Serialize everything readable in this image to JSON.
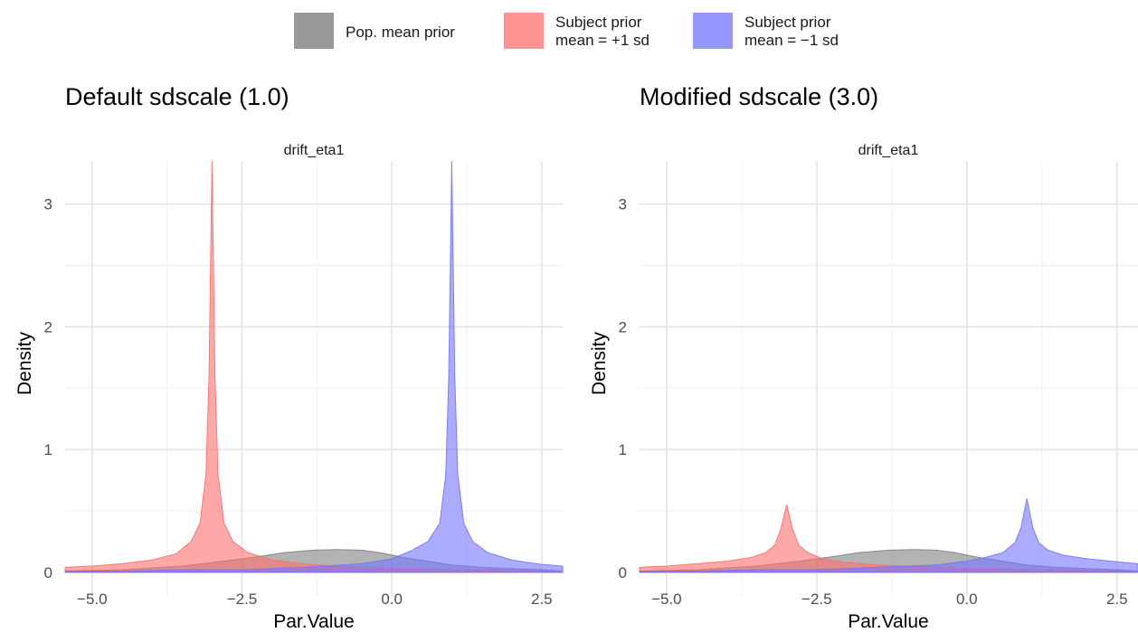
{
  "legend": {
    "items": [
      {
        "lines": [
          "Pop. mean prior"
        ],
        "color": "#808080"
      },
      {
        "lines": [
          "Subject prior",
          "mean = +1 sd"
        ],
        "color": "#FF6E6E"
      },
      {
        "lines": [
          "Subject prior",
          "mean = −1 sd"
        ],
        "color": "#7373FF"
      }
    ]
  },
  "chart_data": [
    {
      "type": "area",
      "title": "Default sdscale (1.0)",
      "facet": "drift_eta1",
      "xlabel": "Par.Value",
      "ylabel": "Density",
      "xlim": [
        -5.45,
        2.85
      ],
      "ylim": [
        -0.2,
        3.35
      ],
      "x_ticks": [
        -5.0,
        -2.5,
        0.0,
        2.5
      ],
      "x_tick_labels": [
        "−5.0",
        "−2.5",
        "0.0",
        "2.5"
      ],
      "y_ticks": [
        0,
        1,
        2,
        3
      ],
      "y_tick_labels": [
        "0",
        "1",
        "2",
        "3"
      ],
      "grid": true,
      "legend_position": "top",
      "series": [
        {
          "name": "Pop. mean prior",
          "color": "#808080",
          "x": [
            -5.45,
            -4.5,
            -3.5,
            -2.8,
            -2.2,
            -1.8,
            -1.3,
            -0.9,
            -0.5,
            -0.2,
            0.2,
            0.6,
            1.0,
            1.5,
            2.0,
            2.5,
            2.85
          ],
          "y": [
            0.01,
            0.02,
            0.05,
            0.09,
            0.13,
            0.16,
            0.18,
            0.185,
            0.18,
            0.16,
            0.12,
            0.09,
            0.06,
            0.04,
            0.03,
            0.02,
            0.01
          ]
        },
        {
          "name": "Subject prior mean = +1 sd",
          "color": "#FF6E6E",
          "x": [
            -5.45,
            -5.0,
            -4.5,
            -4.0,
            -3.6,
            -3.35,
            -3.2,
            -3.1,
            -3.05,
            -3.0,
            -2.95,
            -2.9,
            -2.8,
            -2.65,
            -2.4,
            -2.0,
            -1.5,
            -1.0,
            -0.5,
            0.0,
            0.5,
            1.0,
            1.5,
            2.0,
            2.5,
            2.85
          ],
          "y": [
            0.04,
            0.05,
            0.07,
            0.1,
            0.15,
            0.25,
            0.4,
            0.8,
            1.6,
            3.35,
            1.6,
            0.8,
            0.4,
            0.25,
            0.16,
            0.1,
            0.07,
            0.05,
            0.04,
            0.03,
            0.03,
            0.02,
            0.02,
            0.015,
            0.01,
            0.01
          ]
        },
        {
          "name": "Subject prior mean = −1 sd",
          "color": "#7373FF",
          "x": [
            -5.45,
            -4.5,
            -3.5,
            -2.5,
            -1.5,
            -0.5,
            0.0,
            0.3,
            0.6,
            0.8,
            0.9,
            0.95,
            1.0,
            1.05,
            1.1,
            1.2,
            1.35,
            1.6,
            2.0,
            2.4,
            2.85
          ],
          "y": [
            0.01,
            0.01,
            0.02,
            0.02,
            0.04,
            0.07,
            0.11,
            0.17,
            0.25,
            0.4,
            0.8,
            1.6,
            3.35,
            1.6,
            0.8,
            0.4,
            0.25,
            0.16,
            0.1,
            0.07,
            0.05
          ]
        }
      ]
    },
    {
      "type": "area",
      "title": "Modified sdscale (3.0)",
      "facet": "drift_eta1",
      "xlabel": "Par.Value",
      "ylabel": "Density",
      "xlim": [
        -5.45,
        2.85
      ],
      "ylim": [
        -0.2,
        3.35
      ],
      "x_ticks": [
        -5.0,
        -2.5,
        0.0,
        2.5
      ],
      "x_tick_labels": [
        "−5.0",
        "−2.5",
        "0.0",
        "2.5"
      ],
      "y_ticks": [
        0,
        1,
        2,
        3
      ],
      "y_tick_labels": [
        "0",
        "1",
        "2",
        "3"
      ],
      "grid": true,
      "legend_position": "top",
      "series": [
        {
          "name": "Pop. mean prior",
          "color": "#808080",
          "x": [
            -5.45,
            -4.5,
            -3.5,
            -2.8,
            -2.2,
            -1.8,
            -1.3,
            -0.9,
            -0.5,
            -0.2,
            0.2,
            0.6,
            1.0,
            1.5,
            2.0,
            2.5,
            2.85
          ],
          "y": [
            0.01,
            0.02,
            0.05,
            0.09,
            0.13,
            0.16,
            0.18,
            0.185,
            0.18,
            0.16,
            0.12,
            0.09,
            0.06,
            0.04,
            0.03,
            0.02,
            0.01
          ]
        },
        {
          "name": "Subject prior mean = +1 sd",
          "color": "#FF6E6E",
          "x": [
            -5.45,
            -5.0,
            -4.5,
            -4.0,
            -3.6,
            -3.35,
            -3.2,
            -3.1,
            -3.0,
            -2.9,
            -2.8,
            -2.65,
            -2.4,
            -2.0,
            -1.5,
            -1.0,
            -0.5,
            0.0,
            0.5,
            1.0,
            1.5,
            2.0,
            2.5,
            2.85
          ],
          "y": [
            0.04,
            0.05,
            0.07,
            0.09,
            0.12,
            0.16,
            0.22,
            0.35,
            0.55,
            0.35,
            0.22,
            0.16,
            0.11,
            0.08,
            0.06,
            0.05,
            0.04,
            0.03,
            0.03,
            0.02,
            0.02,
            0.015,
            0.01,
            0.01
          ]
        },
        {
          "name": "Subject prior mean = −1 sd",
          "color": "#7373FF",
          "x": [
            -5.45,
            -4.5,
            -3.5,
            -2.5,
            -1.5,
            -0.5,
            0.0,
            0.3,
            0.6,
            0.8,
            0.9,
            1.0,
            1.1,
            1.2,
            1.35,
            1.6,
            2.0,
            2.4,
            2.85
          ],
          "y": [
            0.01,
            0.01,
            0.02,
            0.02,
            0.04,
            0.06,
            0.09,
            0.12,
            0.16,
            0.24,
            0.36,
            0.6,
            0.36,
            0.24,
            0.18,
            0.14,
            0.11,
            0.09,
            0.07
          ]
        }
      ]
    }
  ]
}
